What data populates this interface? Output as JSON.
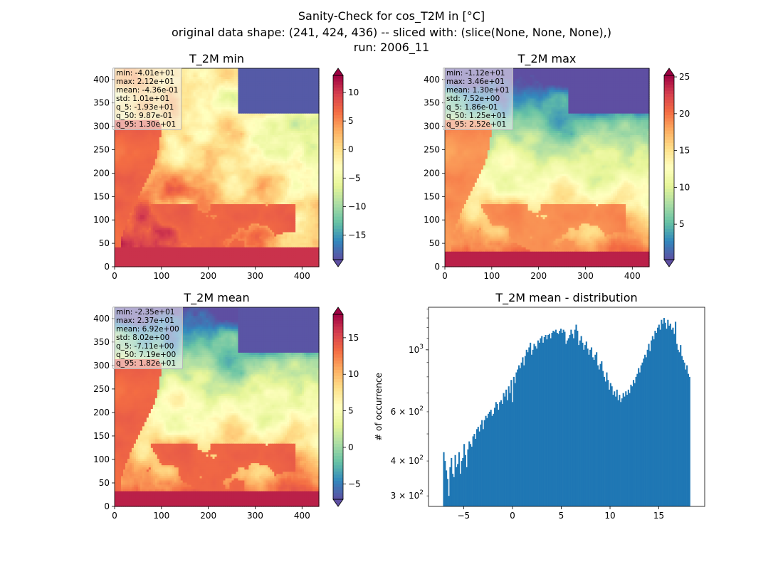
{
  "figure": {
    "suptitle_lines": [
      "Sanity-Check for cos_T2M in [°C]",
      "original data shape: (241, 424, 436) -- sliced with: (slice(None, None, None),)",
      "run: 2006_11"
    ]
  },
  "colors": {
    "histogram_bar": "#1f77b4",
    "colormap": "Spectral_r"
  },
  "chart_data": [
    {
      "type": "heatmap",
      "title": "T_2M min",
      "xlim": [
        0,
        436
      ],
      "ylim": [
        0,
        424
      ],
      "xticks": [
        0,
        100,
        200,
        300,
        400
      ],
      "yticks": [
        0,
        50,
        100,
        150,
        200,
        250,
        300,
        350,
        400
      ],
      "colorbar": {
        "vmin": -19.3,
        "vmax": 13.0,
        "ticks": [
          -15,
          -10,
          -5,
          0,
          5,
          10
        ],
        "extend": "both"
      },
      "stats": [
        "min: -4.01e+01",
        "max: 2.12e+01",
        "mean: -4.36e-01",
        "std: 1.01e+01",
        "q_5: -1.93e+01",
        "q_50: 9.87e-01",
        "q_95: 1.30e+01"
      ]
    },
    {
      "type": "heatmap",
      "title": "T_2M max",
      "xlim": [
        0,
        436
      ],
      "ylim": [
        0,
        424
      ],
      "xticks": [
        0,
        100,
        200,
        300,
        400
      ],
      "yticks": [
        0,
        50,
        100,
        150,
        200,
        250,
        300,
        350,
        400
      ],
      "colorbar": {
        "vmin": 0.186,
        "vmax": 25.2,
        "ticks": [
          5,
          10,
          15,
          20,
          25
        ],
        "extend": "both"
      },
      "stats": [
        "min: -1.12e+01",
        "max: 3.46e+01",
        "mean: 1.30e+01",
        "std: 7.52e+00",
        "q_5: 1.86e-01",
        "q_50: 1.25e+01",
        "q_95: 2.52e+01"
      ]
    },
    {
      "type": "heatmap",
      "title": "T_2M mean",
      "xlim": [
        0,
        436
      ],
      "ylim": [
        0,
        424
      ],
      "xticks": [
        0,
        100,
        200,
        300,
        400
      ],
      "yticks": [
        0,
        50,
        100,
        150,
        200,
        250,
        300,
        350,
        400
      ],
      "colorbar": {
        "vmin": -7.11,
        "vmax": 18.2,
        "ticks": [
          -5,
          0,
          5,
          10,
          15
        ],
        "extend": "both"
      },
      "stats": [
        "min: -2.35e+01",
        "max: 2.37e+01",
        "mean: 6.92e+00",
        "std: 8.02e+00",
        "q_5: -7.11e+00",
        "q_50: 7.19e+00",
        "q_95: 1.82e+01"
      ]
    },
    {
      "type": "bar",
      "title": "T_2M mean - distribution",
      "xlabel": "",
      "ylabel": "# of occurrence",
      "xlim": [
        -8.6,
        19.7
      ],
      "ylim": [
        275,
        1420
      ],
      "yscale": "log",
      "xticks": [
        -5,
        0,
        5,
        10,
        15
      ],
      "yticks_major": [
        {
          "value": 1000,
          "label": "10^3"
        }
      ],
      "yticks_minor": [
        {
          "value": 300,
          "label": "3 × 10^2"
        },
        {
          "value": 400,
          "label": "4 × 10^2"
        },
        {
          "value": 600,
          "label": "6 × 10^2"
        }
      ],
      "bin_start": -7.11,
      "bin_end": 18.2,
      "counts": [
        430,
        400,
        370,
        345,
        300,
        380,
        410,
        360,
        350,
        420,
        380,
        390,
        430,
        360,
        400,
        410,
        460,
        420,
        380,
        440,
        470,
        460,
        450,
        490,
        500,
        480,
        520,
        530,
        510,
        540,
        560,
        520,
        560,
        580,
        570,
        590,
        600,
        610,
        580,
        590,
        620,
        650,
        640,
        610,
        650,
        660,
        640,
        700,
        680,
        720,
        660,
        740,
        700,
        780,
        650,
        800,
        760,
        830,
        850,
        880,
        860,
        900,
        940,
        880,
        950,
        1000,
        980,
        1020,
        1060,
        960,
        1000,
        1050,
        1030,
        1010,
        1080,
        1060,
        1100,
        1120,
        1060,
        1110,
        1130,
        1090,
        1130,
        1140,
        1100,
        1150,
        1170,
        1160,
        1180,
        1150,
        1140,
        1170,
        1190,
        1150,
        1180,
        1160,
        1050,
        1080,
        1100,
        1130,
        1180,
        1140,
        1100,
        1180,
        1230,
        1170,
        1040,
        1080,
        1120,
        1060,
        1000,
        1040,
        1070,
        1010,
        960,
        1000,
        1020,
        940,
        920,
        960,
        980,
        880,
        850,
        890,
        910,
        840,
        800,
        770,
        830,
        780,
        720,
        760,
        740,
        690,
        710,
        680,
        720,
        660,
        690,
        650,
        670,
        700,
        680,
        710,
        690,
        720,
        700,
        750,
        740,
        780,
        760,
        800,
        820,
        860,
        830,
        880,
        900,
        930,
        960,
        940,
        1000,
        1050,
        990,
        1080,
        1120,
        1090,
        1170,
        1150,
        1200,
        1230,
        1180,
        1280,
        1240,
        1300,
        1250,
        1190,
        1280,
        1220,
        1240,
        1180,
        1200,
        1140,
        1260,
        1050,
        1000,
        980,
        1040,
        950,
        920,
        900,
        850,
        880,
        820,
        800
      ]
    }
  ]
}
